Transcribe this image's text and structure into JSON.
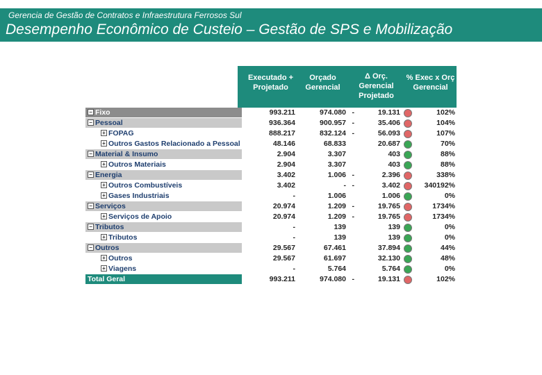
{
  "header": {
    "subtitle": "Gerencia de Gestão de Contratos e Infraestrutura Ferrosos Sul",
    "title": "Desempenho Econômico de Custeio – Gestão de SPS e Mobilização"
  },
  "table": {
    "columns": [
      "Executado + Projetado",
      "Orçado Gerencial",
      "Δ Orç. Gerencial Projetado",
      "% Exec x Orç Gerencial"
    ],
    "rows": [
      {
        "label": "Fixo",
        "executado": "993.211",
        "orcado": "974.080",
        "sign": "-",
        "delta": "19.131",
        "status": "#e06666",
        "pct": "102%"
      },
      {
        "label": "Pessoal",
        "executado": "936.364",
        "orcado": "900.957",
        "sign": "-",
        "delta": "35.406",
        "status": "#e06666",
        "pct": "104%"
      },
      {
        "label": "FOPAG",
        "executado": "888.217",
        "orcado": "832.124",
        "sign": "-",
        "delta": "56.093",
        "status": "#e06666",
        "pct": "107%"
      },
      {
        "label": "Outros Gastos Relacionado a Pessoal",
        "executado": "48.146",
        "orcado": "68.833",
        "delta": "20.687",
        "status": "#3aa655",
        "pct": "70%"
      },
      {
        "label": "Material & Insumo",
        "executado": "2.904",
        "orcado": "3.307",
        "delta": "403",
        "status": "#3aa655",
        "pct": "88%"
      },
      {
        "label": "Outros Materiais",
        "executado": "2.904",
        "orcado": "3.307",
        "delta": "403",
        "status": "#3aa655",
        "pct": "88%"
      },
      {
        "label": "Energia",
        "executado": "3.402",
        "orcado": "1.006",
        "sign": "-",
        "delta": "2.396",
        "status": "#e06666",
        "pct": "338%"
      },
      {
        "label": "Outros Combustíveis",
        "executado": "3.402",
        "orcado": "-",
        "sign": "-",
        "delta": "3.402",
        "status": "#e06666",
        "pct": "340192%"
      },
      {
        "label": "Gases Industriais",
        "executado": "-",
        "orcado": "1.006",
        "delta": "1.006",
        "status": "#3aa655",
        "pct": "0%"
      },
      {
        "label": "Serviços",
        "executado": "20.974",
        "orcado": "1.209",
        "sign": "-",
        "delta": "19.765",
        "status": "#e06666",
        "pct": "1734%"
      },
      {
        "label": "Serviços de Apoio",
        "executado": "20.974",
        "orcado": "1.209",
        "sign": "-",
        "delta": "19.765",
        "status": "#e06666",
        "pct": "1734%"
      },
      {
        "label": "Tributos",
        "executado": "-",
        "orcado": "139",
        "delta": "139",
        "status": "#3aa655",
        "pct": "0%"
      },
      {
        "label": "Tributos",
        "executado": "-",
        "orcado": "139",
        "delta": "139",
        "status": "#3aa655",
        "pct": "0%"
      },
      {
        "label": "Outros",
        "executado": "29.567",
        "orcado": "67.461",
        "delta": "37.894",
        "status": "#3aa655",
        "pct": "44%"
      },
      {
        "label": "Outros",
        "executado": "29.567",
        "orcado": "61.697",
        "delta": "32.130",
        "status": "#3aa655",
        "pct": "48%"
      },
      {
        "label": "Viagens",
        "executado": "-",
        "orcado": "5.764",
        "delta": "5.764",
        "status": "#3aa655",
        "pct": "0%"
      },
      {
        "label": "Total Geral",
        "executado": "993.211",
        "orcado": "974.080",
        "sign": "-",
        "delta": "19.131",
        "status": "#e06666",
        "pct": "102%"
      }
    ]
  }
}
